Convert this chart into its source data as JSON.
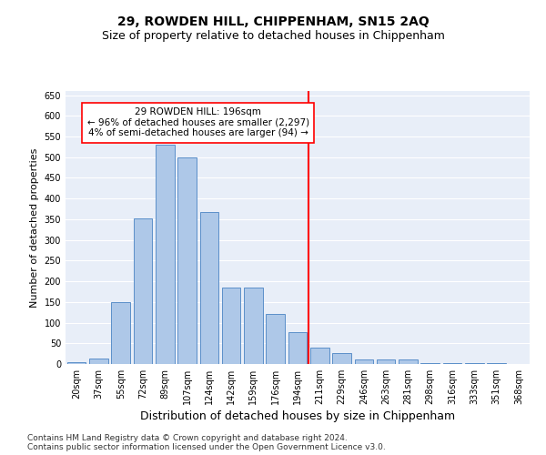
{
  "title": "29, ROWDEN HILL, CHIPPENHAM, SN15 2AQ",
  "subtitle": "Size of property relative to detached houses in Chippenham",
  "xlabel": "Distribution of detached houses by size in Chippenham",
  "ylabel": "Number of detached properties",
  "categories": [
    "20sqm",
    "37sqm",
    "55sqm",
    "72sqm",
    "89sqm",
    "107sqm",
    "124sqm",
    "142sqm",
    "159sqm",
    "176sqm",
    "194sqm",
    "211sqm",
    "229sqm",
    "246sqm",
    "263sqm",
    "281sqm",
    "298sqm",
    "316sqm",
    "333sqm",
    "351sqm",
    "368sqm"
  ],
  "values": [
    5,
    13,
    150,
    353,
    530,
    500,
    368,
    185,
    185,
    122,
    77,
    40,
    27,
    12,
    12,
    10,
    3,
    2,
    2,
    2,
    1
  ],
  "bar_color": "#aec8e8",
  "bar_edge_color": "#5b8fc9",
  "vline_x_index": 10,
  "vline_color": "red",
  "annotation_text": "29 ROWDEN HILL: 196sqm\n← 96% of detached houses are smaller (2,297)\n4% of semi-detached houses are larger (94) →",
  "annotation_box_color": "white",
  "annotation_box_edge_color": "red",
  "ylim": [
    0,
    660
  ],
  "yticks": [
    0,
    50,
    100,
    150,
    200,
    250,
    300,
    350,
    400,
    450,
    500,
    550,
    600,
    650
  ],
  "background_color": "#e8eef8",
  "grid_color": "white",
  "footnote1": "Contains HM Land Registry data © Crown copyright and database right 2024.",
  "footnote2": "Contains public sector information licensed under the Open Government Licence v3.0.",
  "title_fontsize": 10,
  "subtitle_fontsize": 9,
  "xlabel_fontsize": 9,
  "ylabel_fontsize": 8,
  "tick_fontsize": 7,
  "annotation_fontsize": 7.5,
  "footnote_fontsize": 6.5
}
